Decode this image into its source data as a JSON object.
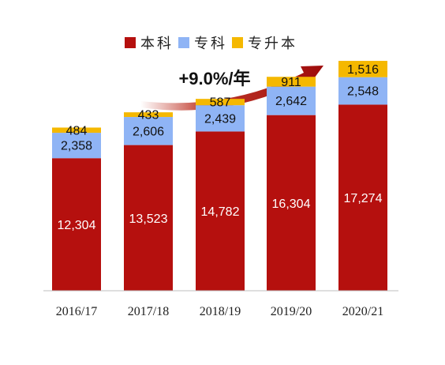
{
  "chart_data": {
    "type": "bar",
    "stacked": true,
    "categories": [
      "2016/17",
      "2017/18",
      "2018/19",
      "2019/20",
      "2020/21"
    ],
    "series": [
      {
        "name": "本科",
        "color": "#b5100e",
        "label_color": "#ffffff",
        "values": [
          12304,
          13523,
          14782,
          16304,
          17274
        ]
      },
      {
        "name": "专科",
        "color": "#8fb4f5",
        "label_color": "#111111",
        "values": [
          2358,
          2606,
          2439,
          2642,
          2548
        ]
      },
      {
        "name": "专升本",
        "color": "#f5b800",
        "label_color": "#111111",
        "values": [
          484,
          433,
          587,
          911,
          1516
        ]
      }
    ],
    "annotation": {
      "text": "+9.0%/年",
      "color": "#b5100e"
    },
    "legend": "top-center",
    "grid": false,
    "ylim": [
      0,
      22000
    ]
  }
}
